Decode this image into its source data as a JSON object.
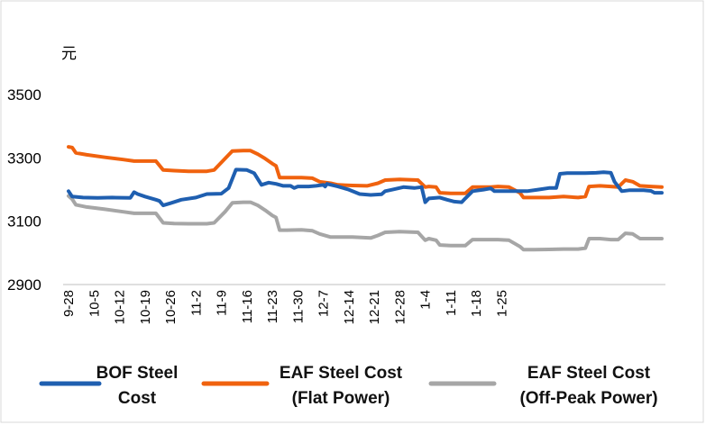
{
  "chart_data": {
    "type": "line",
    "title": "",
    "xlabel": "",
    "ylabel": "元",
    "ylim": [
      2900,
      3600
    ],
    "yticks": [
      2900,
      3100,
      3300,
      3500
    ],
    "ytick_labels": [
      "2900",
      "3100",
      "3300",
      "3500"
    ],
    "grid": false,
    "legend_placement": "bottom",
    "x_tick_labels": [
      "9-28",
      "10-5",
      "10-12",
      "10-19",
      "10-26",
      "11-2",
      "11-9",
      "11-16",
      "11-23",
      "11-30",
      "12-7",
      "12-14",
      "12-21",
      "12-28",
      "1-4",
      "1-11",
      "1-18",
      "1-25"
    ],
    "x_range_days": [
      0,
      127
    ],
    "series": [
      {
        "name_lines": [
          "BOF Steel",
          "Cost"
        ],
        "color": "#1f5fb0",
        "points": [
          [
            0,
            3195
          ],
          [
            1,
            3178
          ],
          [
            4,
            3175
          ],
          [
            8,
            3174
          ],
          [
            12,
            3175
          ],
          [
            17,
            3174
          ],
          [
            18,
            3192
          ],
          [
            19,
            3186
          ],
          [
            21,
            3178
          ],
          [
            24,
            3168
          ],
          [
            25,
            3164
          ],
          [
            26,
            3150
          ],
          [
            28,
            3157
          ],
          [
            31,
            3168
          ],
          [
            35,
            3175
          ],
          [
            38,
            3186
          ],
          [
            42,
            3187
          ],
          [
            44,
            3205
          ],
          [
            46,
            3263
          ],
          [
            49,
            3262
          ],
          [
            51,
            3252
          ],
          [
            53,
            3215
          ],
          [
            55,
            3222
          ],
          [
            57,
            3218
          ],
          [
            59,
            3212
          ],
          [
            61,
            3212
          ],
          [
            62,
            3205
          ],
          [
            63,
            3210
          ],
          [
            66,
            3210
          ],
          [
            68,
            3212
          ],
          [
            70,
            3215
          ],
          [
            70.5,
            3210
          ],
          [
            71,
            3218
          ],
          [
            74,
            3210
          ],
          [
            77,
            3200
          ],
          [
            80,
            3186
          ],
          [
            83,
            3183
          ],
          [
            86,
            3185
          ],
          [
            87,
            3195
          ],
          [
            89,
            3200
          ],
          [
            92,
            3208
          ],
          [
            95,
            3205
          ],
          [
            97,
            3208
          ],
          [
            98,
            3160
          ],
          [
            99,
            3172
          ],
          [
            102,
            3175
          ],
          [
            104,
            3168
          ],
          [
            106,
            3162
          ],
          [
            108,
            3160
          ],
          [
            109,
            3172
          ],
          [
            111,
            3195
          ],
          [
            114,
            3200
          ],
          [
            116,
            3204
          ],
          [
            117,
            3195
          ],
          [
            120,
            3195
          ],
          [
            123,
            3195
          ],
          [
            126,
            3195
          ],
          [
            129,
            3200
          ],
          [
            132,
            3205
          ],
          [
            134,
            3205
          ],
          [
            135,
            3250
          ],
          [
            137,
            3252
          ],
          [
            142,
            3252
          ],
          [
            145,
            3253
          ],
          [
            147,
            3255
          ],
          [
            149,
            3253
          ],
          [
            150,
            3225
          ],
          [
            152,
            3195
          ],
          [
            154,
            3198
          ],
          [
            156,
            3198
          ],
          [
            158,
            3198
          ],
          [
            160,
            3196
          ],
          [
            161,
            3190
          ],
          [
            163,
            3190
          ]
        ]
      },
      {
        "name_lines": [
          "EAF Steel Cost",
          "(Flat Power)"
        ],
        "color": "#f0620e",
        "points": [
          [
            0,
            3335
          ],
          [
            1,
            3333
          ],
          [
            2,
            3316
          ],
          [
            5,
            3310
          ],
          [
            10,
            3302
          ],
          [
            15,
            3295
          ],
          [
            18,
            3290
          ],
          [
            24,
            3290
          ],
          [
            26,
            3262
          ],
          [
            29,
            3260
          ],
          [
            33,
            3258
          ],
          [
            38,
            3258
          ],
          [
            40,
            3262
          ],
          [
            43,
            3298
          ],
          [
            45,
            3322
          ],
          [
            48,
            3323
          ],
          [
            50,
            3323
          ],
          [
            52,
            3312
          ],
          [
            54,
            3298
          ],
          [
            56,
            3282
          ],
          [
            57,
            3275
          ],
          [
            58,
            3238
          ],
          [
            60,
            3238
          ],
          [
            64,
            3238
          ],
          [
            67,
            3236
          ],
          [
            69,
            3225
          ],
          [
            72,
            3220
          ],
          [
            74,
            3215
          ],
          [
            78,
            3213
          ],
          [
            82,
            3212
          ],
          [
            85,
            3220
          ],
          [
            87,
            3230
          ],
          [
            91,
            3232
          ],
          [
            96,
            3230
          ],
          [
            98,
            3208
          ],
          [
            99,
            3210
          ],
          [
            101,
            3208
          ],
          [
            102,
            3190
          ],
          [
            105,
            3188
          ],
          [
            109,
            3188
          ],
          [
            111,
            3208
          ],
          [
            116,
            3208
          ],
          [
            118,
            3210
          ],
          [
            121,
            3208
          ],
          [
            124,
            3190
          ],
          [
            125,
            3175
          ],
          [
            128,
            3175
          ],
          [
            132,
            3175
          ],
          [
            136,
            3178
          ],
          [
            140,
            3175
          ],
          [
            142,
            3178
          ],
          [
            143,
            3210
          ],
          [
            146,
            3212
          ],
          [
            149,
            3210
          ],
          [
            151,
            3208
          ],
          [
            153,
            3230
          ],
          [
            155,
            3225
          ],
          [
            157,
            3212
          ],
          [
            160,
            3210
          ],
          [
            163,
            3208
          ]
        ]
      },
      {
        "name_lines": [
          "EAF Steel Cost",
          "(Off-Peak Power)"
        ],
        "color": "#a6a6a6",
        "points": [
          [
            0,
            3180
          ],
          [
            1,
            3170
          ],
          [
            2,
            3152
          ],
          [
            5,
            3145
          ],
          [
            10,
            3138
          ],
          [
            15,
            3130
          ],
          [
            18,
            3125
          ],
          [
            24,
            3125
          ],
          [
            26,
            3095
          ],
          [
            29,
            3093
          ],
          [
            33,
            3092
          ],
          [
            38,
            3092
          ],
          [
            40,
            3095
          ],
          [
            43,
            3130
          ],
          [
            45,
            3158
          ],
          [
            48,
            3160
          ],
          [
            50,
            3160
          ],
          [
            52,
            3150
          ],
          [
            54,
            3135
          ],
          [
            56,
            3118
          ],
          [
            57,
            3112
          ],
          [
            58,
            3072
          ],
          [
            60,
            3072
          ],
          [
            64,
            3073
          ],
          [
            67,
            3070
          ],
          [
            69,
            3060
          ],
          [
            72,
            3050
          ],
          [
            78,
            3050
          ],
          [
            83,
            3047
          ],
          [
            85,
            3055
          ],
          [
            87,
            3065
          ],
          [
            91,
            3067
          ],
          [
            96,
            3065
          ],
          [
            98,
            3040
          ],
          [
            99,
            3045
          ],
          [
            101,
            3040
          ],
          [
            102,
            3025
          ],
          [
            105,
            3023
          ],
          [
            109,
            3023
          ],
          [
            111,
            3042
          ],
          [
            116,
            3042
          ],
          [
            118,
            3042
          ],
          [
            121,
            3040
          ],
          [
            124,
            3020
          ],
          [
            125,
            3010
          ],
          [
            128,
            3010
          ],
          [
            132,
            3011
          ],
          [
            136,
            3012
          ],
          [
            140,
            3012
          ],
          [
            142,
            3015
          ],
          [
            143,
            3045
          ],
          [
            146,
            3045
          ],
          [
            149,
            3042
          ],
          [
            151,
            3042
          ],
          [
            153,
            3062
          ],
          [
            155,
            3060
          ],
          [
            157,
            3045
          ],
          [
            160,
            3045
          ],
          [
            163,
            3045
          ]
        ]
      }
    ]
  }
}
